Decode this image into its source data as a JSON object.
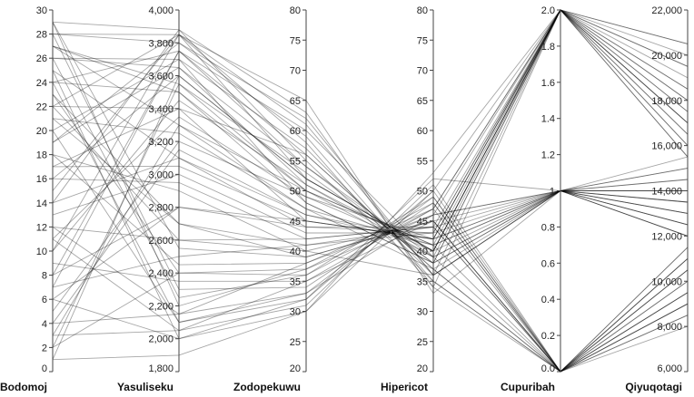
{
  "chart_data": {
    "type": "parallel-coordinates",
    "title": "",
    "line_color": "#000000",
    "axes": [
      {
        "name": "Bodomoj",
        "min": 0,
        "max": 30,
        "ticks": [
          0,
          2,
          4,
          6,
          8,
          10,
          12,
          14,
          16,
          18,
          20,
          22,
          24,
          26,
          28,
          30
        ],
        "tick_labels": [
          "0",
          "2",
          "4",
          "6",
          "8",
          "10",
          "12",
          "14",
          "16",
          "18",
          "20",
          "22",
          "24",
          "26",
          "28",
          "30"
        ]
      },
      {
        "name": "Yasuliseku",
        "min": 1800,
        "max": 4000,
        "ticks": [
          1800,
          2000,
          2200,
          2400,
          2600,
          2800,
          3000,
          3200,
          3400,
          3600,
          3800,
          4000
        ],
        "tick_labels": [
          "1,800",
          "2,000",
          "2,200",
          "2,400",
          "2,600",
          "2,800",
          "3,000",
          "3,200",
          "3,400",
          "3,600",
          "3,800",
          "4,000"
        ]
      },
      {
        "name": "Zodopekuwu",
        "min": 20,
        "max": 80,
        "ticks": [
          20,
          25,
          30,
          35,
          40,
          45,
          50,
          55,
          60,
          65,
          70,
          75,
          80
        ],
        "tick_labels": [
          "20",
          "25",
          "30",
          "35",
          "40",
          "45",
          "50",
          "55",
          "60",
          "65",
          "70",
          "75",
          "80"
        ]
      },
      {
        "name": "Hipericot",
        "min": 20,
        "max": 80,
        "ticks": [
          20,
          25,
          30,
          35,
          40,
          45,
          50,
          55,
          60,
          65,
          70,
          75,
          80
        ],
        "tick_labels": [
          "20",
          "25",
          "30",
          "35",
          "40",
          "45",
          "50",
          "55",
          "60",
          "65",
          "70",
          "75",
          "80"
        ]
      },
      {
        "name": "Cupuribah",
        "min": 0,
        "max": 2,
        "ticks": [
          0,
          0.2,
          0.4,
          0.6,
          0.8,
          1,
          1.2,
          1.4,
          1.6,
          1.8,
          2
        ],
        "tick_labels": [
          "0.0",
          "0.2",
          "0.4",
          "0.6",
          "0.8",
          "1",
          "1.2",
          "1.4",
          "1.6",
          "1.8",
          "2.0"
        ]
      },
      {
        "name": "Qiyuqotagi",
        "min": 6000,
        "max": 22000,
        "ticks": [
          6000,
          8000,
          10000,
          12000,
          14000,
          16000,
          18000,
          20000,
          22000
        ],
        "tick_labels": [
          "6,000",
          "8,000",
          "10,000",
          "12,000",
          "14,000",
          "16,000",
          "18,000",
          "20,000",
          "22,000"
        ]
      }
    ],
    "records": [
      [
        28,
        3850,
        52,
        40,
        2,
        15500
      ],
      [
        26,
        3700,
        48,
        38,
        2,
        17000
      ],
      [
        3,
        2050,
        35,
        45,
        0,
        9000
      ],
      [
        22,
        3400,
        45,
        42,
        1,
        12000
      ],
      [
        1,
        1900,
        30,
        50,
        2,
        19500
      ],
      [
        18,
        2900,
        40,
        36,
        1,
        14000
      ],
      [
        29,
        3880,
        55,
        35,
        0,
        11000
      ],
      [
        4,
        2150,
        38,
        47,
        2,
        16500
      ],
      [
        24,
        3500,
        50,
        41,
        1,
        13000
      ],
      [
        12,
        2600,
        42,
        44,
        0,
        8500
      ],
      [
        8,
        3750,
        60,
        39,
        2,
        18000
      ],
      [
        20,
        2100,
        33,
        46,
        1,
        15000
      ],
      [
        27,
        3300,
        47,
        37,
        0,
        10500
      ],
      [
        6,
        2800,
        44,
        43,
        2,
        20500
      ],
      [
        16,
        3600,
        52,
        40,
        1,
        12500
      ],
      [
        23,
        2400,
        36,
        49,
        0,
        9500
      ],
      [
        10,
        3850,
        58,
        34,
        2,
        17500
      ],
      [
        25,
        2000,
        32,
        52,
        1,
        14500
      ],
      [
        14,
        3100,
        46,
        41,
        0,
        11500
      ],
      [
        2,
        3550,
        53,
        38,
        2,
        16000
      ],
      [
        21,
        2700,
        39,
        45,
        1,
        13500
      ],
      [
        28,
        2300,
        34,
        48,
        0,
        8000
      ],
      [
        5,
        3200,
        49,
        42,
        2,
        19000
      ],
      [
        19,
        3800,
        62,
        36,
        1,
        12000
      ],
      [
        11,
        2050,
        31,
        51,
        0,
        10000
      ],
      [
        26,
        3650,
        51,
        40,
        2,
        15500
      ],
      [
        7,
        2500,
        41,
        44,
        1,
        14000
      ],
      [
        17,
        3400,
        56,
        37,
        0,
        9000
      ],
      [
        29,
        2200,
        37,
        46,
        2,
        18500
      ],
      [
        13,
        3000,
        43,
        43,
        1,
        13000
      ],
      [
        24,
        3750,
        54,
        39,
        0,
        11000
      ],
      [
        9,
        2350,
        35,
        47,
        2,
        17000
      ],
      [
        15,
        3850,
        65,
        33,
        1,
        12500
      ],
      [
        22,
        2600,
        40,
        45,
        0,
        9500
      ],
      [
        3,
        3300,
        50,
        41,
        2,
        20000
      ],
      [
        27,
        3500,
        48,
        38,
        1,
        14500
      ],
      [
        12,
        2150,
        33,
        49,
        0,
        10500
      ],
      [
        20,
        3700,
        57,
        36,
        2,
        16500
      ],
      [
        8,
        2800,
        45,
        42,
        1,
        13500
      ],
      [
        25,
        3100,
        44,
        44,
        0,
        8500
      ],
      [
        1,
        3600,
        52,
        40,
        2,
        18000
      ],
      [
        18,
        2450,
        38,
        46,
        1,
        15000
      ],
      [
        28,
        3800,
        59,
        35,
        0,
        11500
      ],
      [
        6,
        2000,
        30,
        53,
        2,
        19500
      ],
      [
        21,
        3250,
        47,
        41,
        1,
        12000
      ],
      [
        14,
        3880,
        63,
        34,
        0,
        10000
      ],
      [
        23,
        2700,
        41,
        43,
        2,
        17500
      ],
      [
        10,
        3450,
        51,
        39,
        1,
        14000
      ],
      [
        26,
        2250,
        36,
        47,
        0,
        9000
      ],
      [
        4,
        3150,
        46,
        42,
        2,
        16000
      ],
      [
        19,
        3650,
        54,
        38,
        1,
        13000
      ],
      [
        29,
        2550,
        39,
        45,
        0,
        11000
      ],
      [
        16,
        2950,
        42,
        44,
        2,
        18500
      ],
      [
        7,
        3750,
        56,
        37,
        1,
        12500
      ],
      [
        24,
        2100,
        32,
        50,
        0,
        9500
      ],
      [
        11,
        3350,
        49,
        40,
        2,
        20500
      ],
      [
        22,
        3850,
        61,
        36,
        1,
        15500
      ],
      [
        2,
        2400,
        37,
        48,
        0,
        10500
      ],
      [
        17,
        3050,
        45,
        42,
        2,
        17000
      ],
      [
        27,
        3550,
        50,
        39,
        1,
        13500
      ]
    ]
  }
}
